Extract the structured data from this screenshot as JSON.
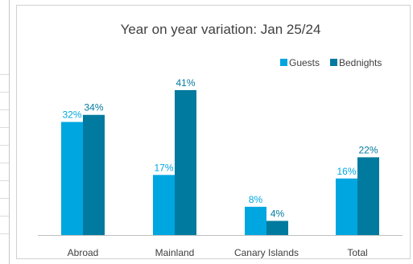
{
  "chart_data": {
    "type": "bar",
    "title": "Year on year variation: Jan 25/24",
    "categories": [
      "Abroad",
      "Mainland",
      "Canary Islands",
      "Total"
    ],
    "series": [
      {
        "name": "Guests",
        "values": [
          32,
          17,
          8,
          16
        ],
        "labels": [
          "32%",
          "17%",
          "8%",
          "16%"
        ],
        "color": "#00A6E0"
      },
      {
        "name": "Bednights",
        "values": [
          34,
          41,
          4,
          22
        ],
        "labels": [
          "34%",
          "41%",
          "4%",
          "22%"
        ],
        "color": "#007A9E"
      }
    ],
    "ylim": [
      0,
      46
    ],
    "grid": false,
    "legend": "top-right",
    "label_colors": {
      "Guests": "#00A6E0",
      "Bednights": "#007A9E"
    }
  }
}
